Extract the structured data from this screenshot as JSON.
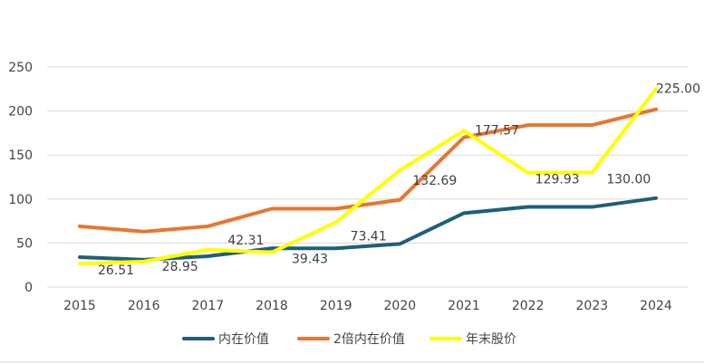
{
  "chart_data": {
    "type": "line",
    "title": "",
    "xlabel": "",
    "ylabel": "",
    "x": [
      "2015",
      "2016",
      "2017",
      "2018",
      "2019",
      "2020",
      "2021",
      "2022",
      "2023",
      "2024"
    ],
    "ylim": [
      0,
      250
    ],
    "yticks": [
      "0",
      "50",
      "100",
      "150",
      "200",
      "250"
    ],
    "grid": "horizontal",
    "legend_position": "bottom",
    "series": [
      {
        "name": "内在价值",
        "color": "#1f5f7a",
        "values": [
          34,
          31,
          35,
          44,
          44,
          49,
          84,
          91,
          91,
          101
        ]
      },
      {
        "name": "2倍内在价值",
        "color": "#e87530",
        "values": [
          69,
          63,
          69,
          89,
          89,
          99,
          170,
          184,
          184,
          202
        ]
      },
      {
        "name": "年末股价",
        "color": "#ffff00",
        "values": [
          26.51,
          28.95,
          42.31,
          39.43,
          73.41,
          132.69,
          177.57,
          129.93,
          130.0,
          225.0
        ],
        "data_labels": [
          "26.51",
          "28.95",
          "42.31",
          "39.43",
          "73.41",
          "132.69",
          "177.57",
          "129.93",
          "130.00",
          "225.00"
        ]
      }
    ]
  }
}
